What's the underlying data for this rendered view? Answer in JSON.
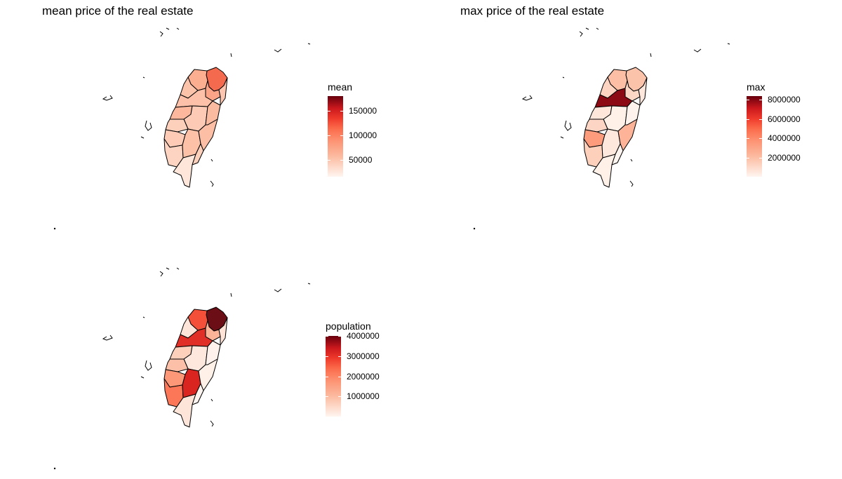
{
  "panels": [
    {
      "title": "mean price of the real estate",
      "legend": {
        "title": "mean",
        "ticks": [
          "150000",
          "100000",
          "50000"
        ],
        "tick_values": [
          150000,
          100000,
          50000
        ],
        "range": [
          15000,
          180000
        ]
      },
      "colors": {
        "north_tip": "#f46a4e",
        "north_west": "#fcae91",
        "north_inner": "#fca487",
        "north_east": "#fdc6b0",
        "mid_west": "#fcc3ab",
        "mid_north": "#fcc1a8",
        "mid_inner": "#fcb79c",
        "center_core": "#fccab5",
        "center_west": "#fdd0bc",
        "center_south": "#fdcbb6",
        "south_west": "#fdd3c1",
        "south_inner": "#fcc1a7",
        "south_tip": "#fee6da",
        "east_north": "#fbbba0",
        "east_mid": "#fcbea5",
        "east_south": "#fdd0bc"
      }
    },
    {
      "title": "max price of the real estate",
      "legend": {
        "title": "max",
        "ticks": [
          "8000000",
          "6000000",
          "4000000",
          "2000000"
        ],
        "tick_values": [
          8000000,
          6000000,
          4000000,
          2000000
        ],
        "range": [
          0,
          8400000
        ]
      },
      "colors": {
        "north_tip": "#fcc3ab",
        "north_west": "#fcbea5",
        "north_inner": "#fdd7c6",
        "north_east": "#fee8dd",
        "mid_west": "#fdd3c1",
        "mid_north": "#8b0a13",
        "mid_inner": "#fee6da",
        "center_core": "#fff0e8",
        "center_west": "#fdd5c4",
        "center_south": "#fc9c7d",
        "south_west": "#fdd0bc",
        "south_inner": "#fee8dd",
        "south_tip": "#fff0e8",
        "east_north": "#fff3ed",
        "east_mid": "#fcb398",
        "east_south": "#fff5f0"
      }
    },
    {
      "title": "",
      "legend": {
        "title": "population",
        "ticks": [
          "4000000",
          "3000000",
          "2000000",
          "1000000"
        ],
        "tick_values": [
          4000000,
          3000000,
          2000000,
          1000000
        ],
        "range": [
          0,
          4000000
        ]
      },
      "colors": {
        "north_tip": "#6b0e15",
        "north_west": "#f44f39",
        "north_inner": "#fcb499",
        "north_east": "#fee3d6",
        "mid_west": "#fee5d9",
        "mid_north": "#e02f27",
        "mid_inner": "#fdd0bc",
        "center_core": "#fee8dd",
        "center_west": "#fcbfa7",
        "center_south": "#fc9777",
        "south_west": "#fb7757",
        "south_inner": "#d9241f",
        "south_tip": "#fee5d9",
        "east_north": "#fff2ec",
        "east_mid": "#fff0e8",
        "east_south": "#fff5f0"
      }
    }
  ]
}
